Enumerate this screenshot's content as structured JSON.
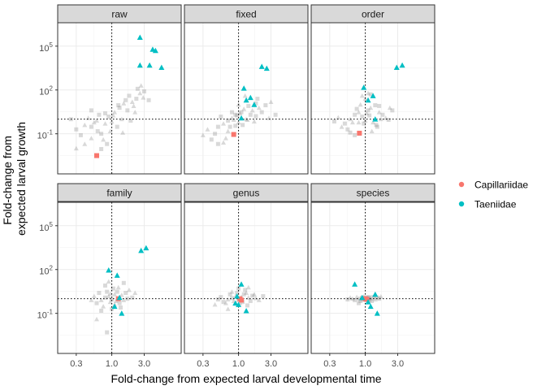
{
  "chart_data": {
    "type": "scatter",
    "facet_style": "ggplot2-bw",
    "xlabel": "Fold-change from expected larval developmental time",
    "ylabel_lines": [
      "Fold-change from",
      "expected larval growth"
    ],
    "x_scale": "log10",
    "y_scale": "log10",
    "xlim": [
      0.16,
      10.5
    ],
    "ylim": [
      0.00018,
      4000000
    ],
    "x_ticks": [
      {
        "value": 0.3,
        "label": "0.3"
      },
      {
        "value": 1.0,
        "label": "1.0"
      },
      {
        "value": 3.0,
        "label": "3.0"
      }
    ],
    "y_ticks": [
      {
        "value": 0.1,
        "label": "10",
        "exp": "-1"
      },
      {
        "value": 100,
        "label": "10",
        "exp": "2"
      },
      {
        "value": 100000,
        "label": "10",
        "exp": "5"
      }
    ],
    "reference_lines": {
      "x": 1,
      "y": 1
    },
    "grid": true,
    "legend": {
      "position": "right",
      "entries": [
        {
          "name": "Capillariidae",
          "color": "#F8766D"
        },
        {
          "name": "Taeniidae",
          "color": "#00BFC4"
        }
      ]
    },
    "background_color": "#808080",
    "panels": [
      {
        "name": "raw",
        "series": [
          {
            "name": "Capillariidae",
            "points": [
              [
                0.6,
                0.0032
              ]
            ]
          },
          {
            "name": "Taeniidae",
            "points": [
              [
                2.6,
                400000
              ],
              [
                4.0,
                60000
              ],
              [
                4.4,
                50000
              ],
              [
                5.4,
                3500
              ],
              [
                3.6,
                5000
              ],
              [
                2.6,
                5000
              ]
            ]
          }
        ],
        "background_points": [
          [
            0.3,
            0.2
          ],
          [
            0.4,
            0.4
          ],
          [
            0.5,
            0.3
          ],
          [
            0.6,
            0.8
          ],
          [
            0.7,
            0.1
          ],
          [
            0.8,
            0.5
          ],
          [
            0.9,
            1.5
          ],
          [
            1.1,
            3
          ],
          [
            1.3,
            6
          ],
          [
            1.5,
            12
          ],
          [
            1.8,
            40
          ],
          [
            2.0,
            15
          ],
          [
            2.3,
            25
          ],
          [
            2.6,
            60
          ],
          [
            3.0,
            80
          ],
          [
            0.5,
            0.05
          ],
          [
            0.35,
            0.08
          ],
          [
            0.45,
            1.2
          ],
          [
            0.65,
            2
          ],
          [
            0.75,
            0.04
          ],
          [
            0.85,
            0.02
          ],
          [
            0.95,
            0.15
          ],
          [
            1.2,
            0.3
          ],
          [
            1.4,
            1
          ],
          [
            1.7,
            4
          ],
          [
            2.1,
            8
          ],
          [
            2.4,
            120
          ],
          [
            2.9,
            30
          ],
          [
            3.5,
            20
          ],
          [
            0.55,
            0.6
          ],
          [
            0.25,
            1
          ],
          [
            0.3,
            0.01
          ],
          [
            0.7,
            0.009
          ],
          [
            1.0,
            0.7
          ],
          [
            1.6,
            20
          ],
          [
            2.2,
            3
          ],
          [
            1.9,
            0.8
          ],
          [
            2.7,
            200
          ],
          [
            0.8,
            2.5
          ],
          [
            0.4,
            0.02
          ],
          [
            0.62,
            0.15
          ],
          [
            1.05,
            1.8
          ],
          [
            1.25,
            9
          ],
          [
            1.45,
            0.12
          ],
          [
            0.5,
            4
          ]
        ]
      },
      {
        "name": "fixed",
        "series": [
          {
            "name": "Capillariidae",
            "points": [
              [
                0.85,
                0.09
              ]
            ]
          },
          {
            "name": "Taeniidae",
            "points": [
              [
                1.2,
                130
              ],
              [
                1.5,
                30
              ],
              [
                2.2,
                4000
              ],
              [
                2.6,
                3000
              ],
              [
                1.7,
                10
              ],
              [
                1.1,
                1.2
              ],
              [
                1.3,
                20
              ]
            ]
          }
        ],
        "background_points": [
          [
            0.5,
            0.3
          ],
          [
            0.6,
            0.5
          ],
          [
            0.7,
            0.8
          ],
          [
            0.8,
            1.2
          ],
          [
            0.9,
            2
          ],
          [
            1.0,
            0.6
          ],
          [
            1.1,
            3
          ],
          [
            1.2,
            5
          ],
          [
            1.4,
            8
          ],
          [
            1.6,
            4
          ],
          [
            1.8,
            12
          ],
          [
            2.0,
            6
          ],
          [
            2.5,
            9
          ],
          [
            3.0,
            15
          ],
          [
            0.45,
            0.1
          ],
          [
            0.35,
            0.2
          ],
          [
            0.55,
            1.5
          ],
          [
            0.65,
            0.05
          ],
          [
            0.75,
            0.3
          ],
          [
            0.85,
            0.9
          ],
          [
            0.95,
            1.8
          ],
          [
            1.05,
            2.5
          ],
          [
            1.15,
            0.4
          ],
          [
            1.3,
            1
          ],
          [
            1.5,
            2
          ],
          [
            1.7,
            0.7
          ],
          [
            2.2,
            3
          ],
          [
            2.8,
            1.2
          ],
          [
            0.4,
            0.04
          ],
          [
            0.3,
            0.08
          ],
          [
            0.5,
            0.02
          ],
          [
            0.7,
            0.15
          ],
          [
            1.9,
            25
          ],
          [
            1.0,
            10
          ],
          [
            0.8,
            3
          ],
          [
            1.25,
            40
          ],
          [
            3.5,
            2
          ],
          [
            0.6,
            0.025
          ],
          [
            0.9,
            0.35
          ],
          [
            1.35,
            0.9
          ],
          [
            1.8,
            1.6
          ]
        ]
      },
      {
        "name": "order",
        "series": [
          {
            "name": "Capillariidae",
            "points": [
              [
                0.82,
                0.11
              ]
            ]
          },
          {
            "name": "Taeniidae",
            "points": [
              [
                0.95,
                150
              ],
              [
                1.3,
                40
              ],
              [
                1.1,
                20
              ],
              [
                2.9,
                3500
              ],
              [
                3.5,
                5000
              ],
              [
                1.4,
                1
              ]
            ]
          }
        ],
        "background_points": [
          [
            0.5,
            0.5
          ],
          [
            0.6,
            1
          ],
          [
            0.7,
            2
          ],
          [
            0.8,
            3
          ],
          [
            0.9,
            1.5
          ],
          [
            1.0,
            0.8
          ],
          [
            1.1,
            4
          ],
          [
            1.2,
            6
          ],
          [
            1.4,
            9
          ],
          [
            1.6,
            3
          ],
          [
            1.8,
            2
          ],
          [
            2.0,
            1.2
          ],
          [
            2.5,
            4
          ],
          [
            0.45,
            0.3
          ],
          [
            0.55,
            0.2
          ],
          [
            0.65,
            0.6
          ],
          [
            0.75,
            5
          ],
          [
            0.85,
            10
          ],
          [
            0.95,
            0.5
          ],
          [
            1.05,
            2.5
          ],
          [
            1.15,
            1.8
          ],
          [
            1.3,
            0.6
          ],
          [
            1.5,
            0.3
          ],
          [
            1.7,
            1
          ],
          [
            2.2,
            0.9
          ],
          [
            0.4,
            1.3
          ],
          [
            0.35,
            0.7
          ],
          [
            1.0,
            25
          ],
          [
            1.2,
            50
          ],
          [
            0.9,
            40
          ],
          [
            0.7,
            0.08
          ],
          [
            1.25,
            0.15
          ],
          [
            1.6,
            8
          ],
          [
            2.3,
            6
          ],
          [
            0.6,
            0.12
          ],
          [
            1.1,
            60
          ],
          [
            1.45,
            0.4
          ],
          [
            0.8,
            0.6
          ]
        ]
      },
      {
        "name": "family",
        "series": [
          {
            "name": "Capillariidae",
            "points": [
              [
                1.25,
                1.0
              ]
            ]
          },
          {
            "name": "Taeniidae",
            "points": [
              [
                0.9,
                90
              ],
              [
                1.2,
                40
              ],
              [
                2.7,
                2000
              ],
              [
                3.2,
                3000
              ],
              [
                1.4,
                0.1
              ],
              [
                1.3,
                1.2
              ],
              [
                1.1,
                0.3
              ]
            ]
          }
        ],
        "background_points": [
          [
            0.6,
            0.5
          ],
          [
            0.7,
            0.8
          ],
          [
            0.8,
            1.2
          ],
          [
            0.9,
            1.5
          ],
          [
            1.0,
            0.9
          ],
          [
            1.1,
            2
          ],
          [
            1.2,
            3
          ],
          [
            1.4,
            1.8
          ],
          [
            1.6,
            2.5
          ],
          [
            1.8,
            4
          ],
          [
            2.0,
            1.2
          ],
          [
            0.55,
            1.5
          ],
          [
            0.65,
            2.5
          ],
          [
            0.75,
            0.3
          ],
          [
            0.85,
            3
          ],
          [
            0.95,
            0.6
          ],
          [
            1.05,
            5
          ],
          [
            1.15,
            0.7
          ],
          [
            1.3,
            0.5
          ],
          [
            1.5,
            0.8
          ],
          [
            1.7,
            1
          ],
          [
            0.5,
            0.8
          ],
          [
            0.8,
            8
          ],
          [
            0.9,
            15
          ],
          [
            1.0,
            0.2
          ],
          [
            1.1,
            0.4
          ],
          [
            0.7,
            0.15
          ],
          [
            1.25,
            6
          ],
          [
            1.5,
            12
          ],
          [
            2.2,
            2.5
          ],
          [
            0.85,
            0.005
          ],
          [
            0.6,
            0.04
          ],
          [
            1.35,
            0.25
          ],
          [
            0.95,
            2.2
          ]
        ]
      },
      {
        "name": "genus",
        "series": [
          {
            "name": "Capillariidae",
            "points": [
              [
                1.05,
                1.0
              ],
              [
                1.1,
                0.8
              ]
            ]
          },
          {
            "name": "Taeniidae",
            "points": [
              [
                1.1,
                10
              ],
              [
                0.9,
                0.5
              ],
              [
                1.3,
                0.15
              ],
              [
                1.0,
                0.4
              ],
              [
                0.95,
                1.5
              ]
            ]
          }
        ],
        "background_points": [
          [
            0.6,
            0.6
          ],
          [
            0.7,
            0.9
          ],
          [
            0.8,
            1.1
          ],
          [
            0.9,
            1.4
          ],
          [
            1.0,
            0.8
          ],
          [
            1.1,
            1.3
          ],
          [
            1.2,
            2
          ],
          [
            1.4,
            1.2
          ],
          [
            1.6,
            1.6
          ],
          [
            1.8,
            1.1
          ],
          [
            0.55,
            1.3
          ],
          [
            0.65,
            0.5
          ],
          [
            0.75,
            2
          ],
          [
            0.85,
            0.7
          ],
          [
            0.95,
            2.5
          ],
          [
            1.05,
            0.5
          ],
          [
            1.15,
            0.6
          ],
          [
            1.3,
            2.5
          ],
          [
            1.5,
            0.7
          ],
          [
            1.7,
            2
          ],
          [
            0.5,
            0.9
          ],
          [
            2.0,
            0.8
          ],
          [
            2.3,
            1.5
          ],
          [
            0.45,
            0.4
          ],
          [
            1.25,
            4
          ],
          [
            0.8,
            3
          ],
          [
            1.35,
            0.35
          ],
          [
            0.7,
            0.2
          ],
          [
            1.0,
            5
          ],
          [
            1.4,
            6
          ]
        ]
      },
      {
        "name": "species",
        "series": [
          {
            "name": "Capillariidae",
            "points": [
              [
                1.0,
                1.0
              ],
              [
                1.05,
                0.9
              ]
            ]
          },
          {
            "name": "Taeniidae",
            "points": [
              [
                0.7,
                10
              ],
              [
                1.5,
                0.1
              ],
              [
                1.2,
                0.3
              ],
              [
                1.4,
                2
              ],
              [
                0.9,
                1.2
              ],
              [
                1.1,
                0.6
              ]
            ]
          }
        ],
        "background_points": [
          [
            0.7,
            0.8
          ],
          [
            0.8,
            1.0
          ],
          [
            0.9,
            1.2
          ],
          [
            1.0,
            0.9
          ],
          [
            1.1,
            1.1
          ],
          [
            1.2,
            1.0
          ],
          [
            1.3,
            1.3
          ],
          [
            1.4,
            0.9
          ],
          [
            1.5,
            1.2
          ],
          [
            0.75,
            1.3
          ],
          [
            0.85,
            0.7
          ],
          [
            0.95,
            1.4
          ],
          [
            1.05,
            1.2
          ],
          [
            1.15,
            0.8
          ],
          [
            1.25,
            0.7
          ],
          [
            0.65,
            1.0
          ],
          [
            1.6,
            1.0
          ],
          [
            0.6,
            1.2
          ],
          [
            0.88,
            1.05
          ],
          [
            0.98,
            1.1
          ],
          [
            1.08,
            0.95
          ],
          [
            1.18,
            1.15
          ],
          [
            0.92,
            0.85
          ],
          [
            1.02,
            0.88
          ],
          [
            1.12,
            1.3
          ],
          [
            1.35,
            1.6
          ],
          [
            0.8,
            0.5
          ],
          [
            1.7,
            1.4
          ],
          [
            0.55,
            0.9
          ]
        ]
      }
    ]
  }
}
